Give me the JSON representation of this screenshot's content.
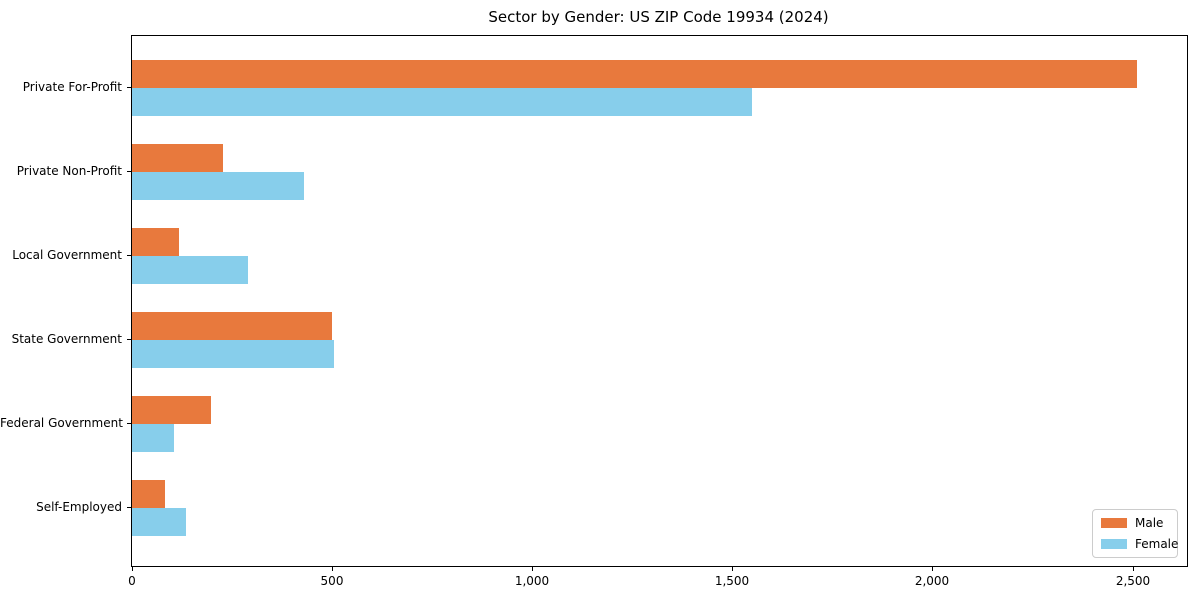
{
  "chart_data": {
    "type": "bar",
    "orientation": "horizontal",
    "title": "Sector by Gender: US ZIP Code 19934 (2024)",
    "categories": [
      "Private For-Profit",
      "Private Non-Profit",
      "Local Government",
      "State Government",
      "Federal Government",
      "Self-Employed"
    ],
    "series": [
      {
        "name": "Male",
        "color": "#e8793d",
        "values": [
          2510,
          227,
          117,
          500,
          198,
          82
        ]
      },
      {
        "name": "Female",
        "color": "#87ceeb",
        "values": [
          1550,
          430,
          290,
          505,
          106,
          136
        ]
      }
    ],
    "xlabel": "",
    "ylabel": "",
    "xlim": [
      0,
      2636
    ],
    "xticks": {
      "values": [
        0,
        500,
        1000,
        1500,
        2000,
        2500
      ],
      "labels": [
        "0",
        "500",
        "1,000",
        "1,500",
        "2,000",
        "2,500"
      ]
    },
    "grid": false,
    "legend_position": "lower right",
    "frame_color": "#000000",
    "background_color": "#ffffff"
  }
}
